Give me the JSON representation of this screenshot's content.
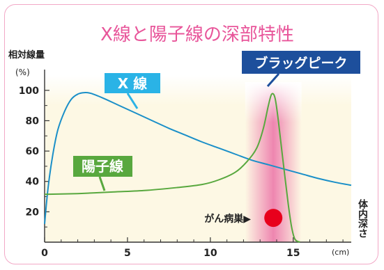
{
  "chart_data": {
    "type": "line",
    "title": "X線と陽子線の深部特性",
    "ylabel": "相対線量",
    "yunit": "(%)",
    "xlabel": "体内深さ",
    "xunit": "(cm)",
    "xlim": [
      0,
      18.5
    ],
    "ylim": [
      0,
      110
    ],
    "xticks": [
      0,
      5,
      10,
      15
    ],
    "yticks": [
      20,
      40,
      60,
      80,
      100
    ],
    "xtick_labels": [
      "0",
      "5",
      "10",
      "15"
    ],
    "ytick_labels": [
      "20",
      "40",
      "60",
      "80",
      "100"
    ],
    "grid": false,
    "series": [
      {
        "name": "X 線",
        "color": "#1a8fc8",
        "points": [
          [
            0.0,
            12
          ],
          [
            0.2,
            35
          ],
          [
            0.5,
            58
          ],
          [
            0.8,
            74
          ],
          [
            1.2,
            86
          ],
          [
            1.6,
            94
          ],
          [
            2.0,
            97.5
          ],
          [
            2.4,
            98.5
          ],
          [
            2.8,
            98
          ],
          [
            3.5,
            95
          ],
          [
            4.5,
            90
          ],
          [
            5.5,
            85
          ],
          [
            6.5,
            80
          ],
          [
            7.5,
            75
          ],
          [
            8.5,
            70.5
          ],
          [
            9.5,
            66
          ],
          [
            10.5,
            62
          ],
          [
            11.5,
            58
          ],
          [
            12.5,
            54
          ],
          [
            13.5,
            51
          ],
          [
            14.5,
            48
          ],
          [
            15.5,
            45
          ],
          [
            16.5,
            42
          ],
          [
            17.5,
            39.5
          ],
          [
            18.5,
            37.5
          ]
        ]
      },
      {
        "name": "陽子線",
        "color": "#58a83e",
        "points": [
          [
            0.0,
            31.5
          ],
          [
            2.0,
            32
          ],
          [
            4.0,
            33
          ],
          [
            6.0,
            34
          ],
          [
            8.0,
            36
          ],
          [
            9.5,
            38
          ],
          [
            10.5,
            41
          ],
          [
            11.5,
            46
          ],
          [
            12.2,
            53
          ],
          [
            12.8,
            62
          ],
          [
            13.2,
            75
          ],
          [
            13.5,
            90
          ],
          [
            13.7,
            97.5
          ],
          [
            13.9,
            95
          ],
          [
            14.1,
            80
          ],
          [
            14.4,
            52
          ],
          [
            14.7,
            25
          ],
          [
            14.9,
            10
          ],
          [
            15.1,
            2
          ],
          [
            15.4,
            0
          ]
        ]
      }
    ],
    "annotations": {
      "peak_label": "ブラッグピーク",
      "tumor_label": "がん病巣▶",
      "tumor_depth": 13.8,
      "tumor_dose": 16
    },
    "colors": {
      "title": "#e8559a",
      "x_label_bg": "#2ab3e6",
      "proton_label_bg": "#58a83e",
      "peak_label_bg": "#1d4f9c",
      "tumor": "#e8001c",
      "glow": "#e8559a",
      "background_tint": "#fdf8e4"
    }
  }
}
